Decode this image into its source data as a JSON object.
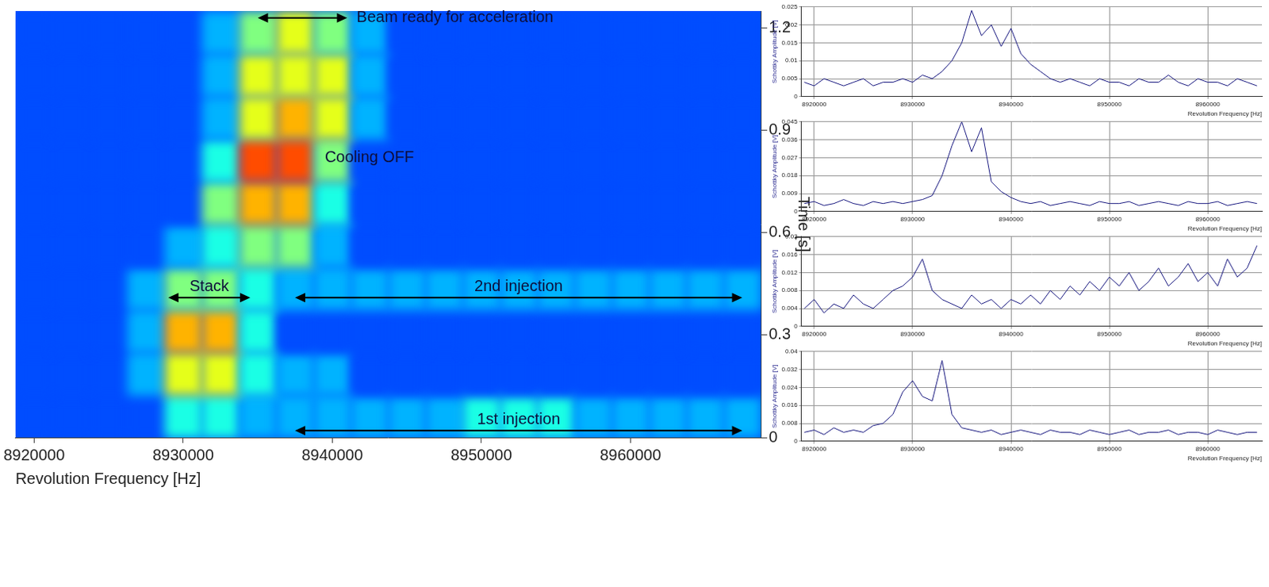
{
  "chart_data": [
    {
      "type": "heatmap",
      "x_label": "Revolution Frequency [Hz]",
      "y_label": "Time [s]",
      "xlim": [
        8918750,
        8968750
      ],
      "xticks": [
        8920000,
        8930000,
        8940000,
        8950000,
        8960000
      ],
      "ylim": [
        0,
        1.25
      ],
      "yticks": [
        0,
        0.3,
        0.6,
        0.9,
        1.2
      ],
      "grid": false,
      "x_bins": [
        8918750,
        8921250,
        8923750,
        8926250,
        8928750,
        8931250,
        8933750,
        8936250,
        8938750,
        8941250,
        8943750,
        8946250,
        8948750,
        8951250,
        8953750,
        8956250,
        8958750,
        8961250,
        8963750,
        8966250,
        8968750
      ],
      "y_bins": [
        0,
        0.125,
        0.25,
        0.375,
        0.5,
        0.625,
        0.75,
        0.875,
        1,
        1.125,
        1.25
      ],
      "cell_range": [
        0,
        10
      ],
      "cells": [
        [
          2,
          2,
          2,
          2,
          4,
          4,
          3,
          3,
          3,
          3,
          3,
          3,
          4,
          4,
          4,
          3,
          3,
          3,
          3,
          3
        ],
        [
          2,
          2,
          2,
          3,
          6,
          6,
          4,
          3,
          3,
          2,
          2,
          2,
          2,
          2,
          2,
          2,
          2,
          2,
          2,
          2
        ],
        [
          2,
          2,
          2,
          3,
          7,
          7,
          4,
          2,
          2,
          2,
          2,
          2,
          2,
          2,
          2,
          2,
          2,
          2,
          2,
          2
        ],
        [
          2,
          2,
          2,
          3,
          5,
          5,
          4,
          3,
          3,
          3,
          3,
          3,
          3,
          3,
          3,
          3,
          3,
          3,
          3,
          3
        ],
        [
          2,
          2,
          2,
          2,
          3,
          4,
          5,
          5,
          3,
          2,
          2,
          2,
          2,
          2,
          2,
          2,
          2,
          2,
          2,
          2
        ],
        [
          2,
          2,
          2,
          2,
          2,
          5,
          7,
          7,
          4,
          2,
          2,
          2,
          2,
          2,
          2,
          2,
          2,
          2,
          2,
          2
        ],
        [
          2,
          2,
          2,
          2,
          2,
          4,
          8,
          8,
          5,
          2,
          2,
          2,
          2,
          2,
          2,
          2,
          2,
          2,
          2,
          2
        ],
        [
          2,
          2,
          2,
          2,
          2,
          3,
          6,
          7,
          6,
          3,
          2,
          2,
          2,
          2,
          2,
          2,
          2,
          2,
          2,
          2
        ],
        [
          2,
          2,
          2,
          2,
          2,
          3,
          6,
          6,
          6,
          3,
          2,
          2,
          2,
          2,
          2,
          2,
          2,
          2,
          2,
          2
        ],
        [
          2,
          2,
          2,
          2,
          2,
          3,
          5,
          6,
          5,
          3,
          2,
          2,
          2,
          2,
          2,
          2,
          2,
          2,
          2,
          2
        ]
      ],
      "annotations": [
        {
          "text": "Beam ready for acceleration",
          "x": [
            8935000,
            8941000
          ],
          "y": 1.23
        },
        {
          "text": "Cooling OFF",
          "x": 8939500,
          "y": 0.82
        },
        {
          "text": "Stack",
          "x": [
            8929000,
            8934500
          ],
          "y": 0.41
        },
        {
          "text": "2nd injection",
          "x": [
            8937500,
            8967500
          ],
          "y": 0.41
        },
        {
          "text": "1st injection",
          "x": [
            8937500,
            8967500
          ],
          "y": 0.02
        }
      ]
    },
    {
      "type": "line",
      "x_label": "Revolution Frequency [Hz]",
      "y_label": "Schottky Amplitude [V]",
      "color": "#1a1a80",
      "grid": true,
      "xlim": [
        8918700,
        8965500
      ],
      "xticks": [
        8920000,
        8930000,
        8940000,
        8950000,
        8960000
      ],
      "ylim": [
        0,
        0.025
      ],
      "yticks": [
        0,
        0.005,
        0.01,
        0.015,
        0.02,
        0.025
      ],
      "x": [
        8919000,
        8920000,
        8921000,
        8922000,
        8923000,
        8924000,
        8925000,
        8926000,
        8927000,
        8928000,
        8929000,
        8930000,
        8931000,
        8932000,
        8933000,
        8934000,
        8935000,
        8936000,
        8937000,
        8938000,
        8939000,
        8940000,
        8941000,
        8942000,
        8943000,
        8944000,
        8945000,
        8946000,
        8947000,
        8948000,
        8949000,
        8950000,
        8951000,
        8952000,
        8953000,
        8954000,
        8955000,
        8956000,
        8957000,
        8958000,
        8959000,
        8960000,
        8961000,
        8962000,
        8963000,
        8964000,
        8965000
      ],
      "values": [
        0.004,
        0.003,
        0.005,
        0.004,
        0.003,
        0.004,
        0.005,
        0.003,
        0.004,
        0.004,
        0.005,
        0.004,
        0.006,
        0.005,
        0.007,
        0.01,
        0.015,
        0.024,
        0.017,
        0.02,
        0.014,
        0.019,
        0.012,
        0.009,
        0.007,
        0.005,
        0.004,
        0.005,
        0.004,
        0.003,
        0.005,
        0.004,
        0.004,
        0.003,
        0.005,
        0.004,
        0.004,
        0.006,
        0.004,
        0.003,
        0.005,
        0.004,
        0.004,
        0.003,
        0.005,
        0.004,
        0.003
      ]
    },
    {
      "type": "line",
      "x_label": "Revolution Frequency [Hz]",
      "y_label": "Schottky Amplitude [V]",
      "color": "#1a1a80",
      "grid": true,
      "xlim": [
        8918700,
        8965500
      ],
      "xticks": [
        8920000,
        8930000,
        8940000,
        8950000,
        8960000
      ],
      "ylim": [
        0,
        0.045
      ],
      "yticks": [
        0,
        0.009,
        0.018,
        0.027,
        0.036,
        0.045
      ],
      "x": [
        8919000,
        8920000,
        8921000,
        8922000,
        8923000,
        8924000,
        8925000,
        8926000,
        8927000,
        8928000,
        8929000,
        8930000,
        8931000,
        8932000,
        8933000,
        8934000,
        8935000,
        8936000,
        8937000,
        8938000,
        8939000,
        8940000,
        8941000,
        8942000,
        8943000,
        8944000,
        8945000,
        8946000,
        8947000,
        8948000,
        8949000,
        8950000,
        8951000,
        8952000,
        8953000,
        8954000,
        8955000,
        8956000,
        8957000,
        8958000,
        8959000,
        8960000,
        8961000,
        8962000,
        8963000,
        8964000,
        8965000
      ],
      "values": [
        0.004,
        0.005,
        0.003,
        0.004,
        0.006,
        0.004,
        0.003,
        0.005,
        0.004,
        0.005,
        0.004,
        0.005,
        0.006,
        0.008,
        0.018,
        0.033,
        0.045,
        0.03,
        0.042,
        0.015,
        0.01,
        0.007,
        0.005,
        0.004,
        0.005,
        0.003,
        0.004,
        0.005,
        0.004,
        0.003,
        0.005,
        0.004,
        0.004,
        0.005,
        0.003,
        0.004,
        0.005,
        0.004,
        0.003,
        0.005,
        0.004,
        0.004,
        0.005,
        0.003,
        0.004,
        0.005,
        0.004
      ]
    },
    {
      "type": "line",
      "x_label": "Revolution Frequency [Hz]",
      "y_label": "Schottky Amplitude [V]",
      "color": "#1a1a80",
      "grid": true,
      "xlim": [
        8918700,
        8965500
      ],
      "xticks": [
        8920000,
        8930000,
        8940000,
        8950000,
        8960000
      ],
      "ylim": [
        0,
        0.02
      ],
      "yticks": [
        0,
        0.004,
        0.008,
        0.012,
        0.016,
        0.02
      ],
      "x": [
        8919000,
        8920000,
        8921000,
        8922000,
        8923000,
        8924000,
        8925000,
        8926000,
        8927000,
        8928000,
        8929000,
        8930000,
        8931000,
        8932000,
        8933000,
        8934000,
        8935000,
        8936000,
        8937000,
        8938000,
        8939000,
        8940000,
        8941000,
        8942000,
        8943000,
        8944000,
        8945000,
        8946000,
        8947000,
        8948000,
        8949000,
        8950000,
        8951000,
        8952000,
        8953000,
        8954000,
        8955000,
        8956000,
        8957000,
        8958000,
        8959000,
        8960000,
        8961000,
        8962000,
        8963000,
        8964000,
        8965000
      ],
      "values": [
        0.004,
        0.006,
        0.003,
        0.005,
        0.004,
        0.007,
        0.005,
        0.004,
        0.006,
        0.008,
        0.009,
        0.011,
        0.015,
        0.008,
        0.006,
        0.005,
        0.004,
        0.007,
        0.005,
        0.006,
        0.004,
        0.006,
        0.005,
        0.007,
        0.005,
        0.008,
        0.006,
        0.009,
        0.007,
        0.01,
        0.008,
        0.011,
        0.009,
        0.012,
        0.008,
        0.01,
        0.013,
        0.009,
        0.011,
        0.014,
        0.01,
        0.012,
        0.009,
        0.015,
        0.011,
        0.013,
        0.018
      ]
    },
    {
      "type": "line",
      "x_label": "Revolution Frequency [Hz]",
      "y_label": "Schottky Amplitude [V]",
      "color": "#1a1a80",
      "grid": true,
      "xlim": [
        8918700,
        8965500
      ],
      "xticks": [
        8920000,
        8930000,
        8940000,
        8950000,
        8960000
      ],
      "ylim": [
        0,
        0.04
      ],
      "yticks": [
        0,
        0.008,
        0.016,
        0.024,
        0.032,
        0.04
      ],
      "x": [
        8919000,
        8920000,
        8921000,
        8922000,
        8923000,
        8924000,
        8925000,
        8926000,
        8927000,
        8928000,
        8929000,
        8930000,
        8931000,
        8932000,
        8933000,
        8934000,
        8935000,
        8936000,
        8937000,
        8938000,
        8939000,
        8940000,
        8941000,
        8942000,
        8943000,
        8944000,
        8945000,
        8946000,
        8947000,
        8948000,
        8949000,
        8950000,
        8951000,
        8952000,
        8953000,
        8954000,
        8955000,
        8956000,
        8957000,
        8958000,
        8959000,
        8960000,
        8961000,
        8962000,
        8963000,
        8964000,
        8965000
      ],
      "values": [
        0.004,
        0.005,
        0.003,
        0.006,
        0.004,
        0.005,
        0.004,
        0.007,
        0.008,
        0.012,
        0.022,
        0.027,
        0.02,
        0.018,
        0.036,
        0.012,
        0.006,
        0.005,
        0.004,
        0.005,
        0.003,
        0.004,
        0.005,
        0.004,
        0.003,
        0.005,
        0.004,
        0.004,
        0.003,
        0.005,
        0.004,
        0.003,
        0.004,
        0.005,
        0.003,
        0.004,
        0.004,
        0.005,
        0.003,
        0.004,
        0.004,
        0.003,
        0.005,
        0.004,
        0.003,
        0.004,
        0.004
      ]
    }
  ]
}
